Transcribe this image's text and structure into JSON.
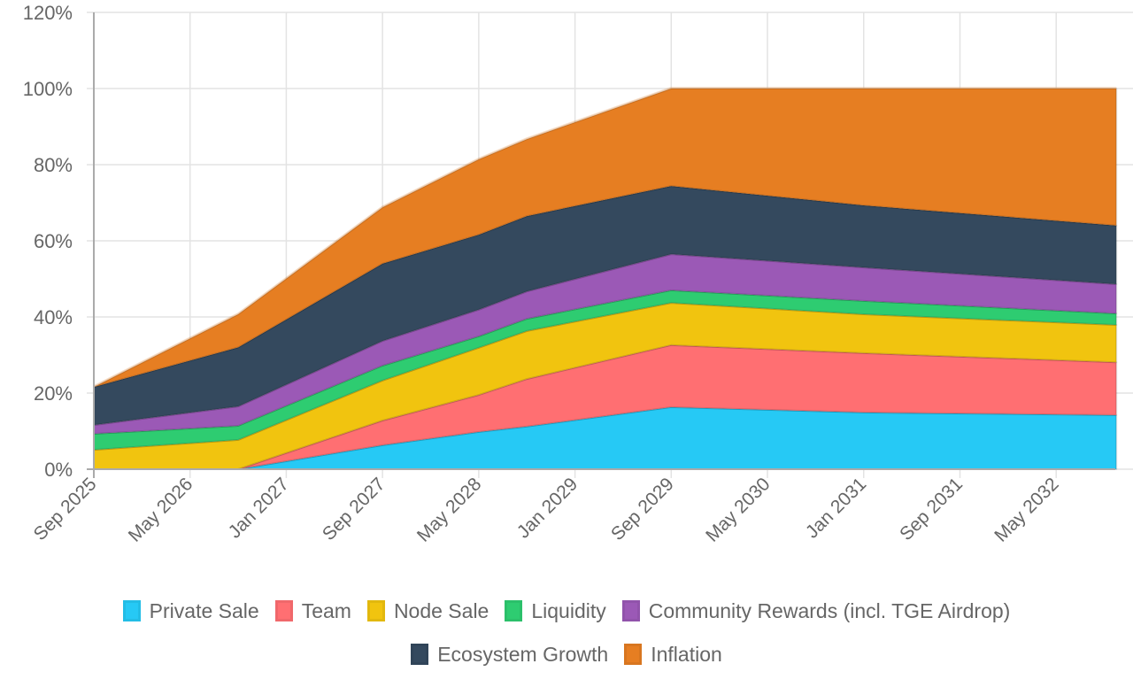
{
  "chart_data": {
    "type": "area",
    "stacked": true,
    "title": "",
    "xlabel": "",
    "ylabel": "",
    "ylim": [
      0,
      120
    ],
    "yticks": [
      "0%",
      "20%",
      "40%",
      "60%",
      "80%",
      "100%",
      "120%"
    ],
    "ytick_values": [
      0,
      20,
      40,
      60,
      80,
      100,
      120
    ],
    "xticks": [
      "Sep 2025",
      "May 2026",
      "Jan 2027",
      "Sep 2027",
      "May 2028",
      "Jan 2029",
      "Sep 2029",
      "May 2030",
      "Jan 2031",
      "Sep 2031",
      "May 2032"
    ],
    "xtick_months": [
      0,
      8,
      16,
      24,
      32,
      40,
      48,
      56,
      64,
      72,
      80
    ],
    "x_range_months": [
      0,
      85
    ],
    "x_months": [
      0,
      12,
      24,
      32,
      36,
      48,
      64,
      85
    ],
    "x_labels": [
      "Sep 2025",
      "Sep 2026",
      "Sep 2027",
      "May 2028",
      "Sep 2028",
      "Sep 2029",
      "Jan 2031",
      "Oct 2032"
    ],
    "grid": true,
    "legend_position": "bottom",
    "series": [
      {
        "name": "Private Sale",
        "color": "#26C9F5",
        "values": [
          0,
          0,
          6.3,
          9.8,
          11.2,
          16.3,
          14.9,
          14.2
        ]
      },
      {
        "name": "Team",
        "color": "#FF6F72",
        "values": [
          0,
          0,
          6.5,
          9.7,
          12.5,
          16.3,
          15.6,
          13.9
        ]
      },
      {
        "name": "Node Sale",
        "color": "#F1C40F",
        "values": [
          5.1,
          7.7,
          10.5,
          12.4,
          12.6,
          11.1,
          10.2,
          9.8
        ]
      },
      {
        "name": "Liquidity",
        "color": "#2ECC71",
        "values": [
          4.2,
          3.7,
          3.9,
          3.0,
          3.2,
          3.3,
          3.5,
          3.0
        ]
      },
      {
        "name": "Community Rewards (incl. TGE Airdrop)",
        "color": "#9B59B6",
        "values": [
          2.3,
          5.1,
          6.5,
          7.0,
          7.2,
          9.5,
          8.8,
          7.7
        ]
      },
      {
        "name": "Ecosystem Growth",
        "color": "#34495E",
        "values": [
          10.0,
          15.5,
          20.3,
          19.7,
          19.8,
          17.9,
          16.3,
          15.4
        ]
      },
      {
        "name": "Inflation",
        "color": "#E67E22",
        "values": [
          0,
          8.7,
          14.8,
          19.8,
          20.2,
          25.6,
          30.7,
          36.0
        ]
      }
    ]
  }
}
